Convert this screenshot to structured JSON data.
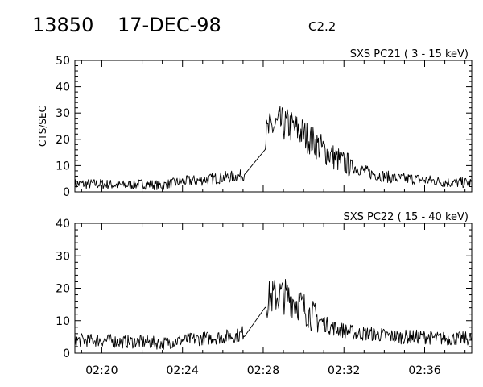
{
  "header": {
    "event_id": "13850",
    "date": "17-DEC-98",
    "flare_class": "C2.2"
  },
  "chart_data": [
    {
      "type": "line",
      "title": "SXS PC21  (  3 - 15 keV)",
      "ylabel": "CTS/SEC",
      "xlabel": "",
      "ylim": [
        0,
        50
      ],
      "y_ticks": [
        "0",
        "10",
        "20",
        "30",
        "40",
        "50"
      ],
      "xlim": [
        "02:18:40",
        "02:38:20"
      ],
      "x_ticks": [
        "02:20",
        "02:24",
        "02:28",
        "02:32",
        "02:36"
      ],
      "grid": false,
      "series": [
        {
          "values": [
            {
              "x": "02:18:40",
              "y": 3
            },
            {
              "x": "02:20:00",
              "y": 3
            },
            {
              "x": "02:21:00",
              "y": 2.5
            },
            {
              "x": "02:22:00",
              "y": 3
            },
            {
              "x": "02:23:00",
              "y": 2.5
            },
            {
              "x": "02:24:00",
              "y": 4
            },
            {
              "x": "02:25:00",
              "y": 4.5
            },
            {
              "x": "02:26:00",
              "y": 5.5
            },
            {
              "x": "02:26:50",
              "y": 6
            },
            {
              "x": "02:27:20",
              "y": 8
            },
            {
              "x": "02:27:50",
              "y": 18
            },
            {
              "x": "02:28:20",
              "y": 24
            },
            {
              "x": "02:28:50",
              "y": 26
            },
            {
              "x": "02:29:20",
              "y": 25
            },
            {
              "x": "02:29:50",
              "y": 23
            },
            {
              "x": "02:30:20",
              "y": 20
            },
            {
              "x": "02:30:50",
              "y": 17
            },
            {
              "x": "02:31:20",
              "y": 14
            },
            {
              "x": "02:32:00",
              "y": 11
            },
            {
              "x": "02:32:40",
              "y": 9
            },
            {
              "x": "02:33:20",
              "y": 7
            },
            {
              "x": "02:34:00",
              "y": 6
            },
            {
              "x": "02:34:40",
              "y": 5
            },
            {
              "x": "02:35:20",
              "y": 5
            },
            {
              "x": "02:36:00",
              "y": 4.5
            },
            {
              "x": "02:36:40",
              "y": 4
            },
            {
              "x": "02:37:20",
              "y": 3.5
            },
            {
              "x": "02:38:00",
              "y": 3.5
            }
          ]
        }
      ]
    },
    {
      "type": "line",
      "title": "SXS PC22  ( 15 - 40 keV)",
      "ylabel": "",
      "xlabel": "",
      "ylim": [
        0,
        40
      ],
      "y_ticks": [
        "0",
        "10",
        "20",
        "30",
        "40"
      ],
      "xlim": [
        "02:18:40",
        "02:38:20"
      ],
      "x_ticks": [
        "02:20",
        "02:24",
        "02:28",
        "02:32",
        "02:36"
      ],
      "grid": false,
      "series": [
        {
          "values": [
            {
              "x": "02:18:40",
              "y": 4
            },
            {
              "x": "02:20:00",
              "y": 4
            },
            {
              "x": "02:21:00",
              "y": 3.5
            },
            {
              "x": "02:22:00",
              "y": 3.5
            },
            {
              "x": "02:23:00",
              "y": 3
            },
            {
              "x": "02:24:00",
              "y": 4
            },
            {
              "x": "02:25:00",
              "y": 4.5
            },
            {
              "x": "02:26:00",
              "y": 5
            },
            {
              "x": "02:26:50",
              "y": 5.5
            },
            {
              "x": "02:27:20",
              "y": 8
            },
            {
              "x": "02:27:50",
              "y": 14
            },
            {
              "x": "02:28:20",
              "y": 17
            },
            {
              "x": "02:28:50",
              "y": 18
            },
            {
              "x": "02:29:20",
              "y": 17
            },
            {
              "x": "02:29:50",
              "y": 15
            },
            {
              "x": "02:30:20",
              "y": 12
            },
            {
              "x": "02:30:50",
              "y": 10
            },
            {
              "x": "02:31:20",
              "y": 8
            },
            {
              "x": "02:32:00",
              "y": 7
            },
            {
              "x": "02:32:40",
              "y": 6
            },
            {
              "x": "02:33:20",
              "y": 6
            },
            {
              "x": "02:34:00",
              "y": 5.5
            },
            {
              "x": "02:34:40",
              "y": 5
            },
            {
              "x": "02:35:20",
              "y": 5
            },
            {
              "x": "02:36:00",
              "y": 5
            },
            {
              "x": "02:36:40",
              "y": 4.5
            },
            {
              "x": "02:37:20",
              "y": 4.5
            },
            {
              "x": "02:38:00",
              "y": 4.5
            }
          ]
        }
      ]
    }
  ]
}
